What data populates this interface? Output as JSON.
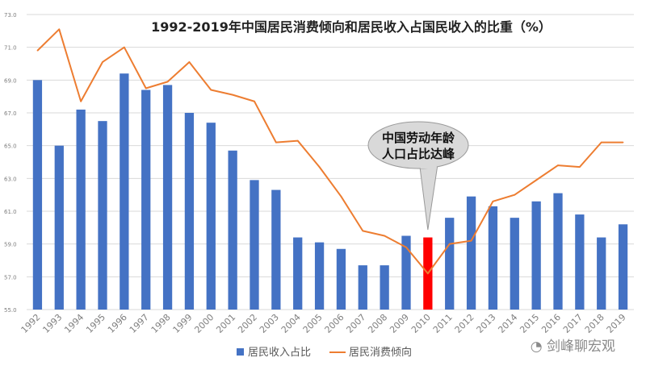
{
  "chart_data": {
    "type": "bar",
    "title": "1992-2019年中国居民消费倾向和居民收入占国民收入的比重（%）",
    "categories": [
      "1992",
      "1993",
      "1994",
      "1995",
      "1996",
      "1997",
      "1998",
      "1999",
      "2000",
      "2001",
      "2002",
      "2003",
      "2004",
      "2005",
      "2006",
      "2007",
      "2008",
      "2009",
      "2010",
      "2011",
      "2012",
      "2013",
      "2014",
      "2015",
      "2016",
      "2017",
      "2018",
      "2019"
    ],
    "series": [
      {
        "name": "居民收入占比",
        "type": "bar",
        "color": "#4472c4",
        "values": [
          69.0,
          65.0,
          67.2,
          66.5,
          69.4,
          68.4,
          68.7,
          67.0,
          66.4,
          64.7,
          62.9,
          62.3,
          59.4,
          59.1,
          58.7,
          57.7,
          57.7,
          59.5,
          59.4,
          60.6,
          61.9,
          61.3,
          60.6,
          61.6,
          62.1,
          60.8,
          59.4,
          60.2
        ],
        "highlight_index": 18,
        "highlight_color": "#ff0000"
      },
      {
        "name": "居民消费倾向",
        "type": "line",
        "color": "#ed7d31",
        "values": [
          70.8,
          72.1,
          67.7,
          70.1,
          71.0,
          68.5,
          68.9,
          70.1,
          68.4,
          68.1,
          67.7,
          65.2,
          65.3,
          63.7,
          61.9,
          59.8,
          59.5,
          58.8,
          57.2,
          59.0,
          59.2,
          61.6,
          62.0,
          62.9,
          63.8,
          63.7,
          65.2,
          65.2
        ]
      }
    ],
    "y_ticks": [
      "55.0",
      "57.0",
      "59.0",
      "61.0",
      "63.0",
      "65.0",
      "67.0",
      "69.0",
      "71.0",
      "73.0"
    ],
    "ylim": [
      55,
      73
    ],
    "grid": true,
    "legend_position": "bottom",
    "annotation": {
      "lines": [
        "中国劳动年龄",
        "人口占比达峰"
      ],
      "target_category": "2010"
    }
  },
  "watermark": "剑峰聊宏观"
}
